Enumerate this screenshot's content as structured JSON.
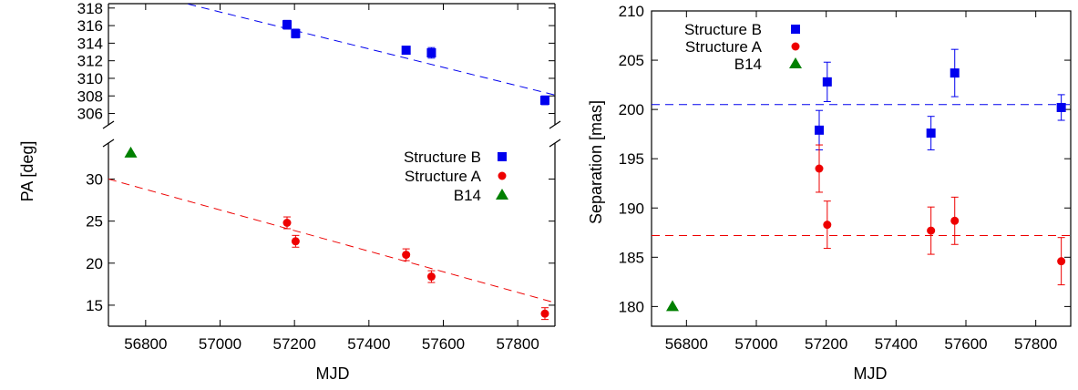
{
  "chart_data": [
    {
      "type": "scatter",
      "title": "",
      "xlabel": "MJD",
      "ylabel": "PA [deg]",
      "broken_y_axis": true,
      "xlim": [
        56700,
        57900
      ],
      "x_ticks": [
        "56800",
        "57000",
        "57200",
        "57400",
        "57600",
        "57800"
      ],
      "upper_panel": {
        "ylim": [
          304.5,
          318.5
        ],
        "y_ticks": [
          "306",
          "308",
          "310",
          "312",
          "314",
          "316",
          "318"
        ]
      },
      "lower_panel": {
        "ylim": [
          12.5,
          34.5
        ],
        "y_ticks": [
          "15",
          "20",
          "25",
          "30"
        ]
      },
      "legend_position": "right",
      "series": [
        {
          "name": "Structure B",
          "marker": "square",
          "color": "#0000ee",
          "panel": "upper",
          "x": [
            57180,
            57203,
            57500,
            57568,
            57873
          ],
          "y": [
            316.1,
            315.1,
            313.2,
            312.9,
            307.5
          ],
          "yerr": [
            0.5,
            0.5,
            0.4,
            0.6,
            0.5
          ],
          "fit_line": {
            "x": [
              56700,
              57900
            ],
            "y": [
              320.7,
              308.1
            ]
          }
        },
        {
          "name": "Structure A",
          "marker": "circle",
          "color": "#ee0000",
          "panel": "lower",
          "x": [
            57180,
            57203,
            57500,
            57568,
            57873
          ],
          "y": [
            24.8,
            22.6,
            21.0,
            18.4,
            14.0
          ],
          "yerr": [
            0.7,
            0.7,
            0.7,
            0.7,
            0.7
          ],
          "fit_line": {
            "x": [
              56700,
              57900
            ],
            "y": [
              30.0,
              15.3
            ]
          }
        },
        {
          "name": "B14",
          "marker": "triangle",
          "color": "#008000",
          "panel": "lower",
          "x": [
            56760
          ],
          "y": [
            33.1
          ]
        }
      ]
    },
    {
      "type": "scatter",
      "title": "",
      "xlabel": "MJD",
      "ylabel": "Separation [mas]",
      "xlim": [
        56700,
        57900
      ],
      "ylim": [
        178,
        210
      ],
      "x_ticks": [
        "56800",
        "57000",
        "57200",
        "57400",
        "57600",
        "57800"
      ],
      "y_ticks": [
        "180",
        "185",
        "190",
        "195",
        "200",
        "205",
        "210"
      ],
      "legend_position": "top-left",
      "series": [
        {
          "name": "Structure B",
          "marker": "square",
          "color": "#0000ee",
          "x": [
            57180,
            57203,
            57500,
            57568,
            57873
          ],
          "y": [
            197.9,
            202.8,
            197.6,
            203.7,
            200.2
          ],
          "yerr": [
            2.0,
            2.0,
            1.7,
            2.4,
            1.3
          ],
          "fit_line": {
            "x": [
              56700,
              57900
            ],
            "y": [
              200.5,
              200.5
            ]
          }
        },
        {
          "name": "Structure A",
          "marker": "circle",
          "color": "#ee0000",
          "x": [
            57180,
            57203,
            57500,
            57568,
            57873
          ],
          "y": [
            194.0,
            188.3,
            187.7,
            188.7,
            184.6
          ],
          "yerr": [
            2.4,
            2.4,
            2.4,
            2.4,
            2.4
          ],
          "fit_line": {
            "x": [
              56700,
              57900
            ],
            "y": [
              187.2,
              187.2
            ]
          }
        },
        {
          "name": "B14",
          "marker": "triangle",
          "color": "#008000",
          "x": [
            56760
          ],
          "y": [
            180.0
          ]
        }
      ]
    }
  ]
}
